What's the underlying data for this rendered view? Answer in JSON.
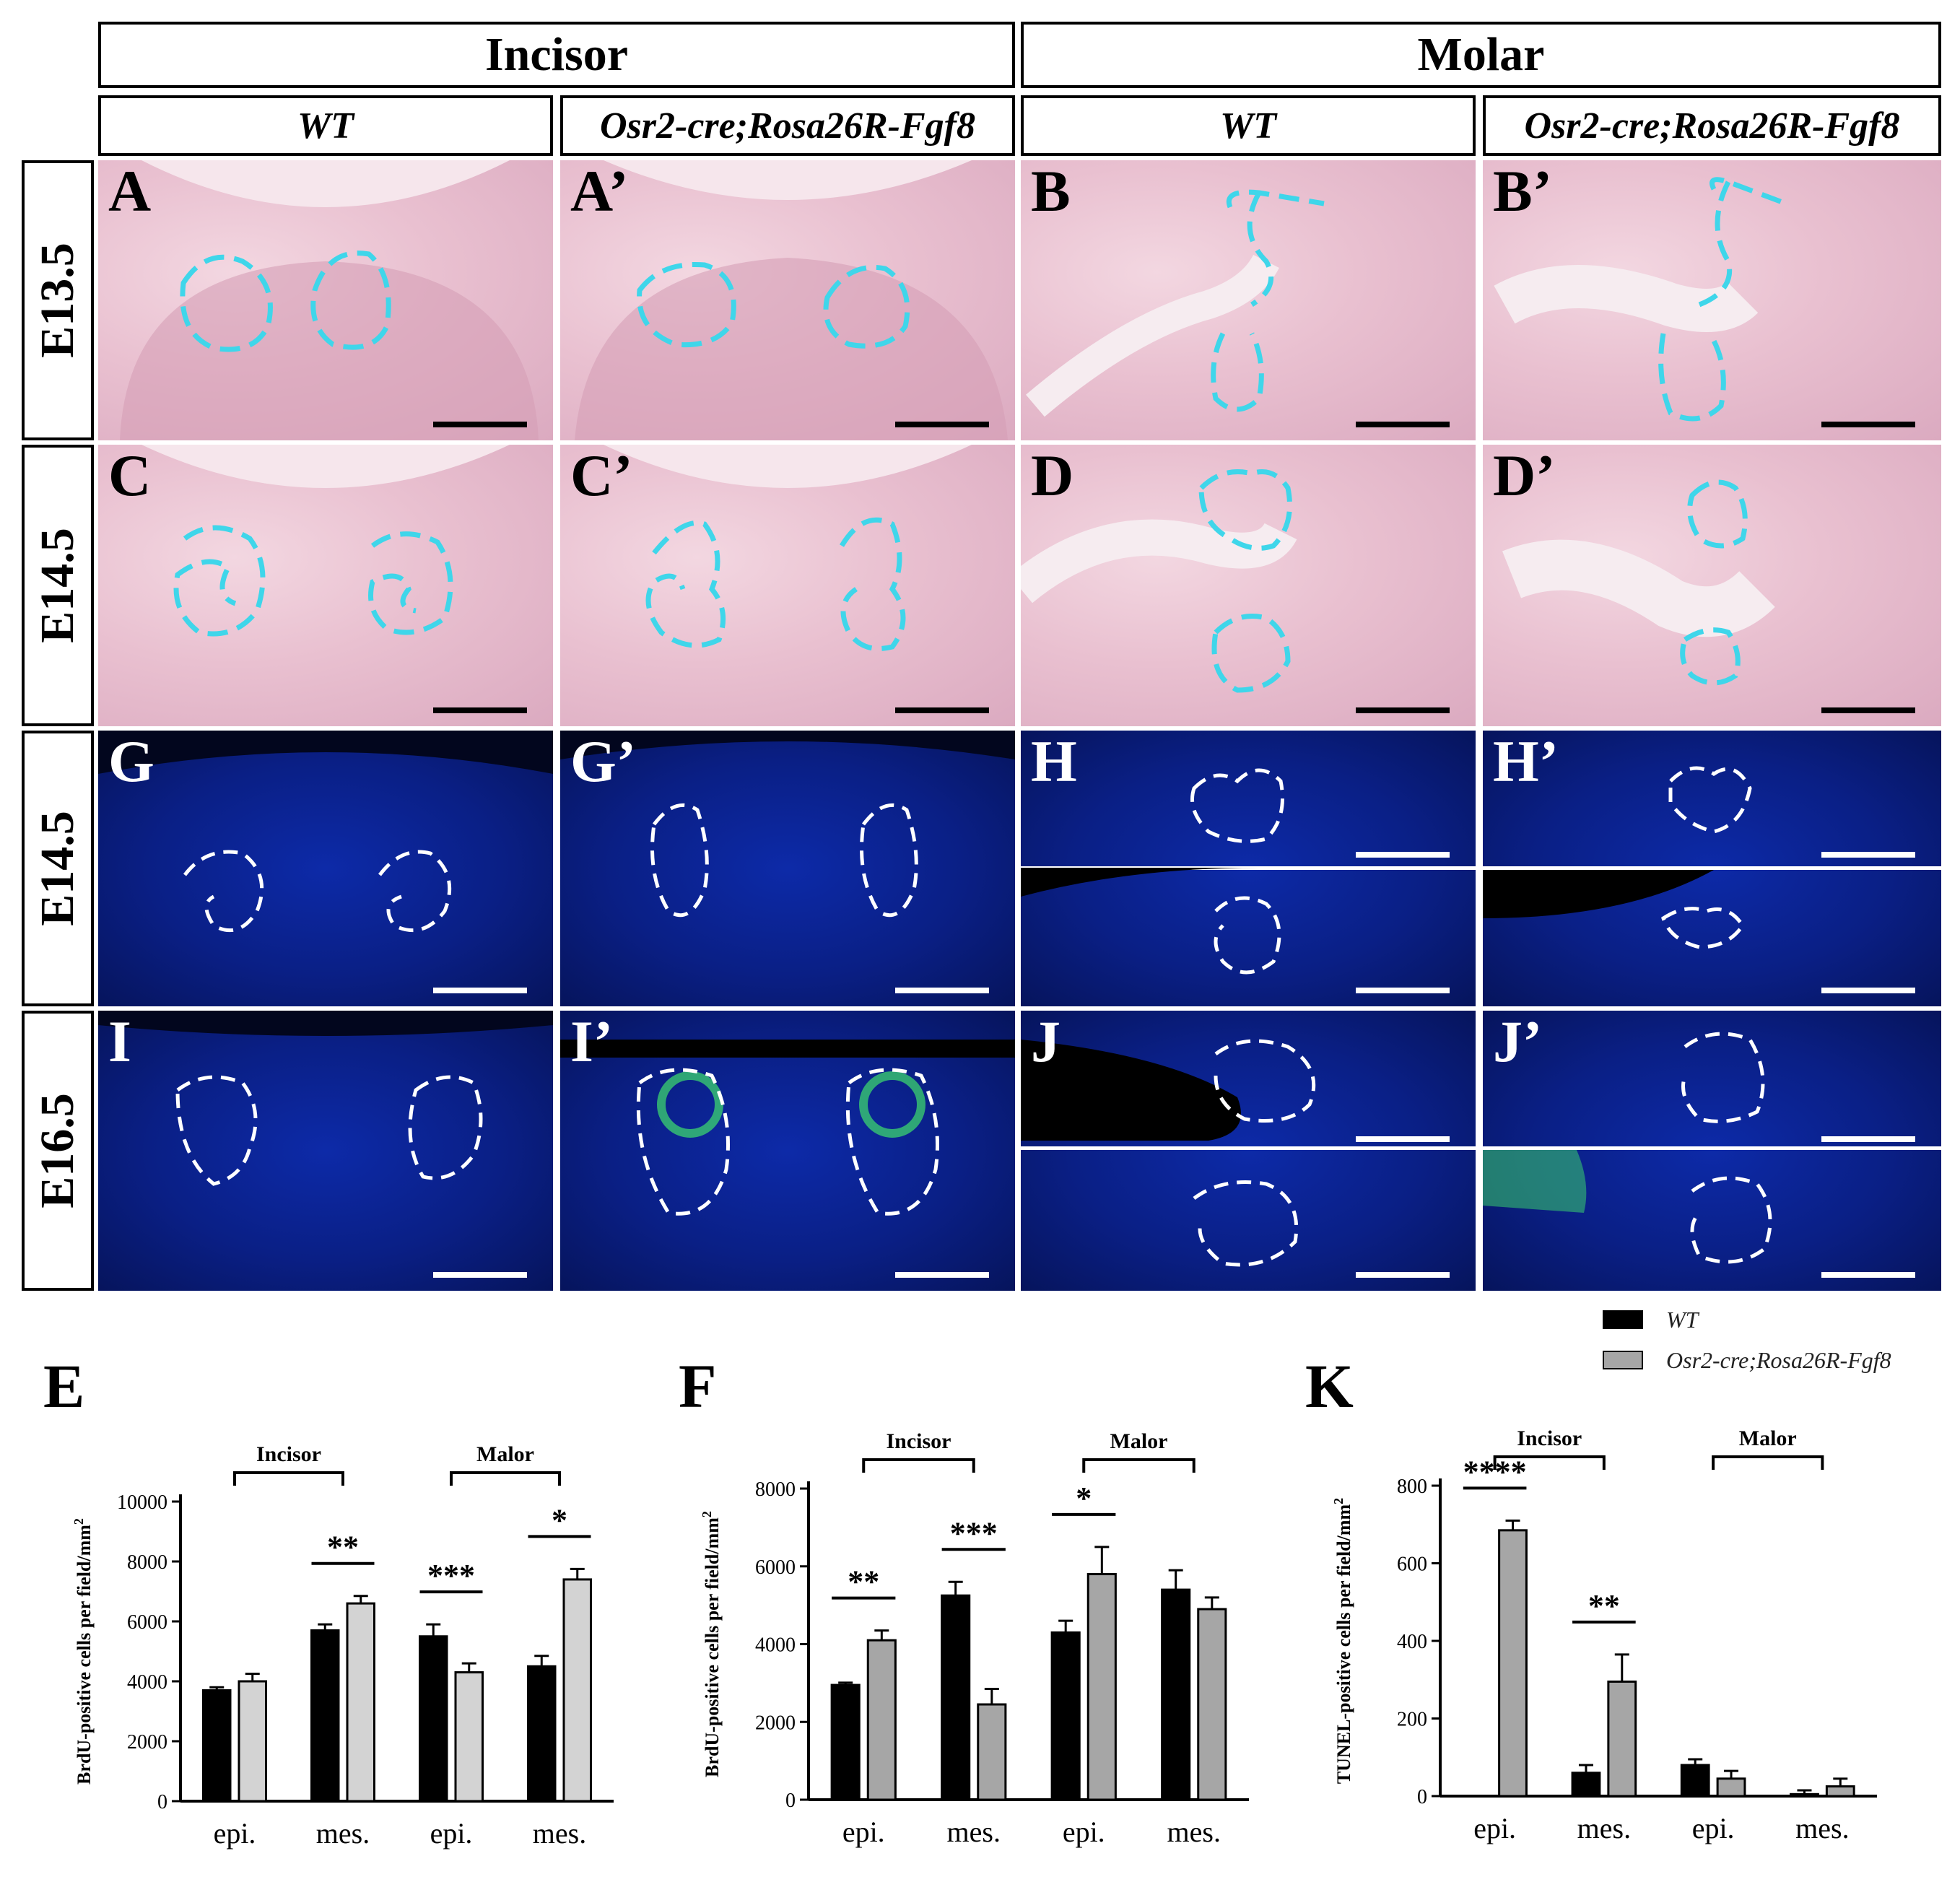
{
  "headers": {
    "incisor": "Incisor",
    "molar": "Molar",
    "col1": "WT",
    "col2": "Osr2-cre;Rosa26R-Fgf8",
    "col3": "WT",
    "col4": "Osr2-cre;Rosa26R-Fgf8"
  },
  "row_labels": [
    "E13.5",
    "E14.5",
    "E14.5",
    "E16.5"
  ],
  "panel_labels": {
    "A": "A",
    "A2": "A’",
    "B": "B",
    "B2": "B’",
    "C": "C",
    "C2": "C’",
    "D": "D",
    "D2": "D’",
    "G": "G",
    "G2": "G’",
    "H": "H",
    "H2": "H’",
    "I": "I",
    "I2": "I’",
    "J": "J",
    "J2": "J’"
  },
  "colors": {
    "he_bg": "#e9c0d0",
    "fl_bg": "#0a1f85",
    "cyan_outline": "#3fd6ea",
    "wt_bar": "#000000",
    "mut_bar_e": "#d3d3d3",
    "mut_bar": "#a6a6a6"
  },
  "legend": {
    "wt": "WT",
    "mut": "Osr2-cre;Rosa26R-Fgf8"
  },
  "chart_data": [
    {
      "id": "E",
      "letter": "E",
      "type": "bar",
      "ylabel": "BrdU-positive cells per field/mm",
      "ylabel_sup": "2",
      "ylim": [
        0,
        10000
      ],
      "yticks": [
        0,
        2000,
        4000,
        6000,
        8000,
        10000
      ],
      "categories": [
        "epi.",
        "mes.",
        "epi.",
        "mes."
      ],
      "groups": [
        {
          "label": "Incisor",
          "from": 0,
          "to": 1
        },
        {
          "label": "Malor",
          "from": 2,
          "to": 3
        }
      ],
      "series": [
        {
          "name": "WT",
          "values": [
            3700,
            5700,
            5500,
            4500
          ],
          "errors": [
            100,
            200,
            400,
            350
          ]
        },
        {
          "name": "Osr2-cre;Rosa26R-Fgf8",
          "values": [
            4000,
            6600,
            4300,
            7400
          ],
          "errors": [
            250,
            250,
            300,
            350
          ]
        }
      ],
      "significance": [
        {
          "cat": 1,
          "label": "**"
        },
        {
          "cat": 2,
          "label": "***"
        },
        {
          "cat": 3,
          "label": "*"
        }
      ]
    },
    {
      "id": "F",
      "letter": "F",
      "type": "bar",
      "ylabel": "BrdU-positive cells per field/mm",
      "ylabel_sup": "2",
      "ylim": [
        0,
        8000
      ],
      "yticks": [
        0,
        2000,
        4000,
        6000,
        8000
      ],
      "categories": [
        "epi.",
        "mes.",
        "epi.",
        "mes."
      ],
      "groups": [
        {
          "label": "Incisor",
          "from": 0,
          "to": 1
        },
        {
          "label": "Malor",
          "from": 2,
          "to": 3
        }
      ],
      "series": [
        {
          "name": "WT",
          "values": [
            2950,
            5250,
            4300,
            5400
          ],
          "errors": [
            60,
            350,
            300,
            500
          ]
        },
        {
          "name": "Osr2-cre;Rosa26R-Fgf8",
          "values": [
            4100,
            2450,
            5800,
            4900
          ],
          "errors": [
            250,
            400,
            700,
            300
          ]
        }
      ],
      "significance": [
        {
          "cat": 0,
          "label": "**"
        },
        {
          "cat": 1,
          "label": "***"
        },
        {
          "cat": 2,
          "label": "*"
        }
      ]
    },
    {
      "id": "K",
      "letter": "K",
      "type": "bar",
      "ylabel": "TUNEL-positive cells per field/mm",
      "ylabel_sup": "2",
      "ylim": [
        0,
        800
      ],
      "yticks": [
        0,
        200,
        400,
        600,
        800
      ],
      "categories": [
        "epi.",
        "mes.",
        "epi.",
        "mes."
      ],
      "groups": [
        {
          "label": "Incisor",
          "from": 0,
          "to": 1
        },
        {
          "label": "Malor",
          "from": 2,
          "to": 3
        }
      ],
      "series": [
        {
          "name": "WT",
          "values": [
            0,
            60,
            80,
            5
          ],
          "errors": [
            0,
            20,
            15,
            10
          ]
        },
        {
          "name": "Osr2-cre;Rosa26R-Fgf8",
          "values": [
            685,
            295,
            45,
            25
          ],
          "errors": [
            25,
            70,
            20,
            20
          ]
        }
      ],
      "significance": [
        {
          "cat": 0,
          "label": "****"
        },
        {
          "cat": 1,
          "label": "**"
        }
      ]
    }
  ]
}
